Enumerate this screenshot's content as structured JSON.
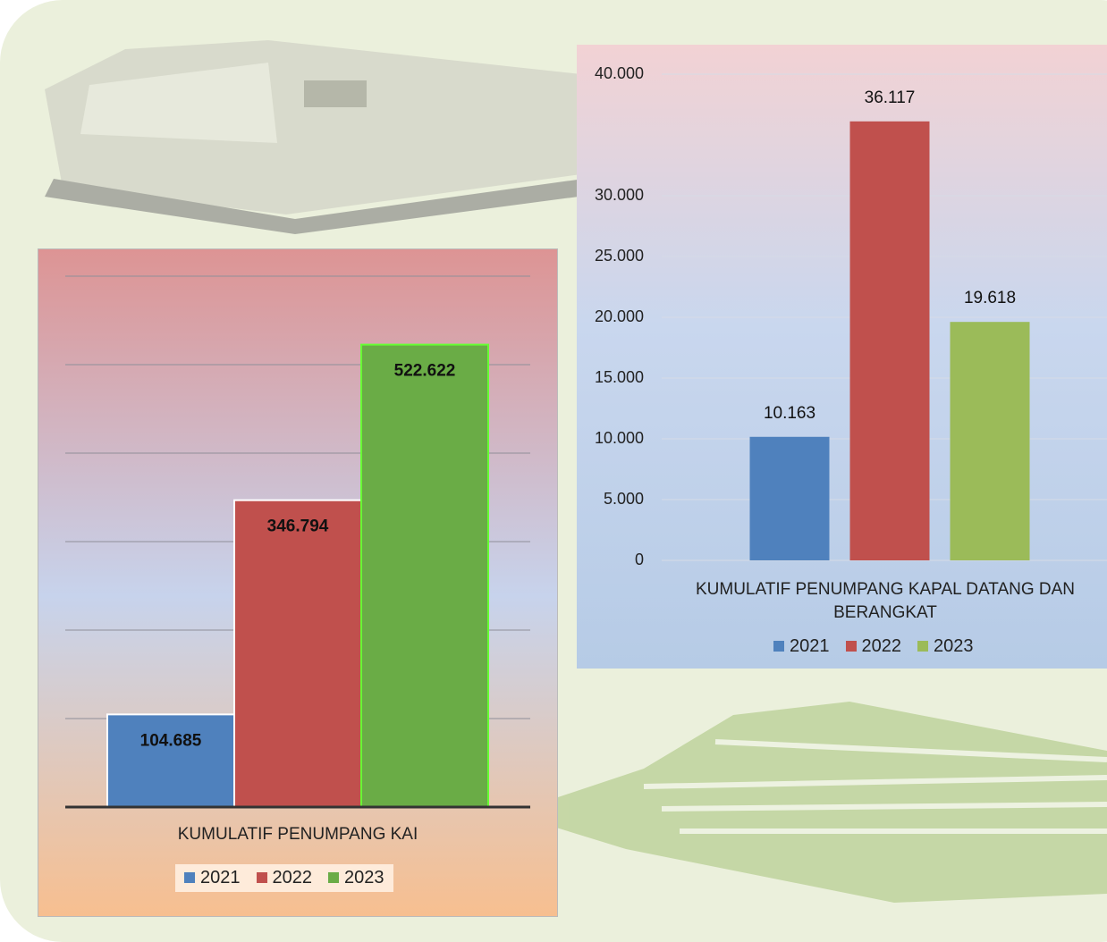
{
  "chart_data": [
    {
      "type": "bar",
      "categories": [
        "KUMULATIF PENUMPANG KAI"
      ],
      "series": [
        {
          "name": "2021",
          "color": "#4f81bd",
          "values": [
            104685
          ],
          "value_labels": [
            "104.685"
          ]
        },
        {
          "name": "2022",
          "color": "#c0504d",
          "values": [
            346794
          ],
          "value_labels": [
            "346.794"
          ]
        },
        {
          "name": "2023",
          "color": "#6aac46",
          "values": [
            522622
          ],
          "value_labels": [
            "522.622"
          ]
        }
      ],
      "ylim": [
        0,
        600000
      ],
      "yticks": [
        0,
        100000,
        200000,
        300000,
        400000,
        500000,
        600000
      ],
      "grid": true
    },
    {
      "type": "bar",
      "categories": [
        "KUMULATIF PENUMPANG KAPAL DATANG DAN BERANGKAT"
      ],
      "series": [
        {
          "name": "2021",
          "color": "#4f81bd",
          "values": [
            10163
          ],
          "value_labels": [
            "10.163"
          ]
        },
        {
          "name": "2022",
          "color": "#c0504d",
          "values": [
            36117
          ],
          "value_labels": [
            "36.117"
          ]
        },
        {
          "name": "2023",
          "color": "#9bbb59",
          "values": [
            19618
          ],
          "value_labels": [
            "19.618"
          ]
        }
      ],
      "ylim": [
        0,
        40000
      ],
      "yticks": [
        0,
        {
          "value": 5000,
          "label": "5.000"
        },
        {
          "value": 10000,
          "label": "10.000"
        },
        {
          "value": 15000,
          "label": "15.000"
        },
        {
          "value": 20000,
          "label": "20.000"
        },
        {
          "value": 25000,
          "label": "25.000"
        },
        {
          "value": 30000,
          "label": "30.000"
        },
        {
          "value": 40000,
          "label": "40.000"
        }
      ],
      "grid": true
    }
  ]
}
